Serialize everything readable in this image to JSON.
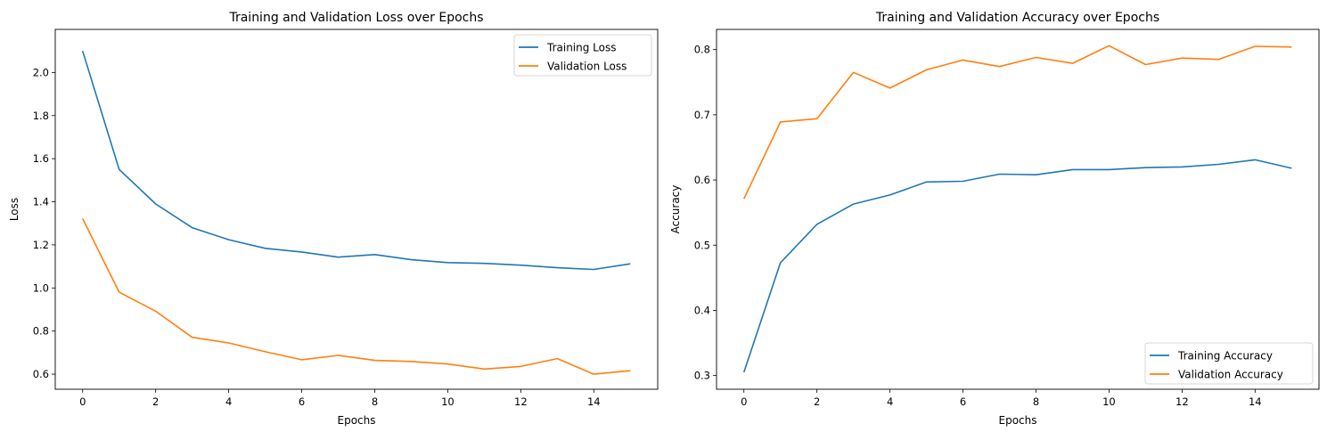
{
  "chart_data": [
    {
      "type": "line",
      "title": "Training and Validation Loss over Epochs",
      "xlabel": "Epochs",
      "ylabel": "Loss",
      "xlim": [
        -0.75,
        15.75
      ],
      "ylim": [
        0.53,
        2.2
      ],
      "xticks": [
        0,
        2,
        4,
        6,
        8,
        10,
        12,
        14
      ],
      "yticks": [
        0.6,
        0.8,
        1.0,
        1.2,
        1.4,
        1.6,
        1.8,
        2.0
      ],
      "legend": "top-right",
      "grid": false,
      "x": [
        0,
        1,
        2,
        3,
        4,
        5,
        6,
        7,
        8,
        9,
        10,
        11,
        12,
        13,
        14,
        15
      ],
      "series": [
        {
          "name": "Training Loss",
          "color": "#1f77b4",
          "values": [
            2.1,
            1.55,
            1.39,
            1.28,
            1.224,
            1.184,
            1.167,
            1.143,
            1.155,
            1.131,
            1.118,
            1.114,
            1.106,
            1.094,
            1.086,
            1.112
          ]
        },
        {
          "name": "Validation Loss",
          "color": "#ff7f0e",
          "values": [
            1.322,
            0.98,
            0.892,
            0.771,
            0.745,
            0.704,
            0.667,
            0.687,
            0.664,
            0.659,
            0.647,
            0.624,
            0.636,
            0.672,
            0.6,
            0.616
          ]
        }
      ]
    },
    {
      "type": "line",
      "title": "Training and Validation Accuracy over Epochs",
      "xlabel": "Epochs",
      "ylabel": "Accuracy",
      "xlim": [
        -0.75,
        15.75
      ],
      "ylim": [
        0.279,
        0.831
      ],
      "xticks": [
        0,
        2,
        4,
        6,
        8,
        10,
        12,
        14
      ],
      "yticks": [
        0.3,
        0.4,
        0.5,
        0.6,
        0.7,
        0.8
      ],
      "legend": "bottom-right",
      "grid": false,
      "x": [
        0,
        1,
        2,
        3,
        4,
        5,
        6,
        7,
        8,
        9,
        10,
        11,
        12,
        13,
        14,
        15
      ],
      "series": [
        {
          "name": "Training Accuracy",
          "color": "#1f77b4",
          "values": [
            0.305,
            0.473,
            0.532,
            0.563,
            0.577,
            0.597,
            0.598,
            0.609,
            0.608,
            0.616,
            0.616,
            0.619,
            0.62,
            0.624,
            0.631,
            0.618
          ]
        },
        {
          "name": "Validation Accuracy",
          "color": "#ff7f0e",
          "values": [
            0.571,
            0.689,
            0.694,
            0.765,
            0.741,
            0.769,
            0.784,
            0.774,
            0.788,
            0.779,
            0.806,
            0.777,
            0.787,
            0.785,
            0.805,
            0.804
          ]
        }
      ]
    }
  ]
}
